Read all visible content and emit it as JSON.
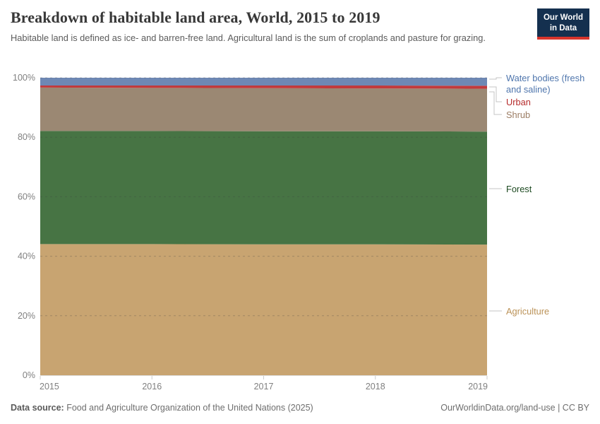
{
  "header": {
    "title": "Breakdown of habitable land area, World, 2015 to 2019",
    "subtitle": "Habitable land is defined as ice- and barren-free land. Agricultural land is the sum of croplands and pasture for grazing.",
    "logo": {
      "line1": "Our World",
      "line2": "in Data"
    }
  },
  "colors": {
    "logo_background": "#14304f",
    "logo_accent": "#d7352c",
    "grid": "rgba(60,60,60,0.28)",
    "axis_text": "#808080"
  },
  "chart_data": {
    "type": "area",
    "stacked": true,
    "title": "Breakdown of habitable land area, World, 2015 to 2019",
    "xlabel": "",
    "ylabel": "",
    "ylim": [
      0,
      100
    ],
    "grid": "dashed horizontal",
    "legend_position": "right",
    "x": [
      2015,
      2016,
      2017,
      2018,
      2019
    ],
    "yticks": [
      "0%",
      "20%",
      "40%",
      "60%",
      "80%",
      "100%"
    ],
    "unit": "% of habitable land",
    "series": [
      {
        "id": "agriculture",
        "name": "Agriculture",
        "color": "#c8a471",
        "label_color": "#bb9257",
        "values": [
          44.1,
          44.1,
          44.0,
          44.0,
          43.9
        ]
      },
      {
        "id": "forest",
        "name": "Forest",
        "color": "#477444",
        "label_color": "#1d4a21",
        "values": [
          38.0,
          38.0,
          38.0,
          38.0,
          38.0
        ]
      },
      {
        "id": "shrub",
        "name": "Shrub",
        "color": "#9b8873",
        "label_color": "#9b7c63",
        "values": [
          14.6,
          14.5,
          14.5,
          14.4,
          14.4
        ]
      },
      {
        "id": "urban",
        "name": "Urban",
        "color": "#c23a3c",
        "label_color": "#b52b2b",
        "values": [
          0.7,
          0.8,
          0.9,
          1.0,
          1.0
        ]
      },
      {
        "id": "water-bodies",
        "name": "Water bodies (fresh and saline)",
        "color": "#6e88b4",
        "label_color": "#4f76ad",
        "values": [
          2.6,
          2.6,
          2.6,
          2.6,
          2.7
        ]
      }
    ]
  },
  "footer": {
    "source_label": "Data source:",
    "source_text": " Food and Agriculture Organization of the United Nations (2025)",
    "credit": "OurWorldinData.org/land-use | CC BY"
  }
}
